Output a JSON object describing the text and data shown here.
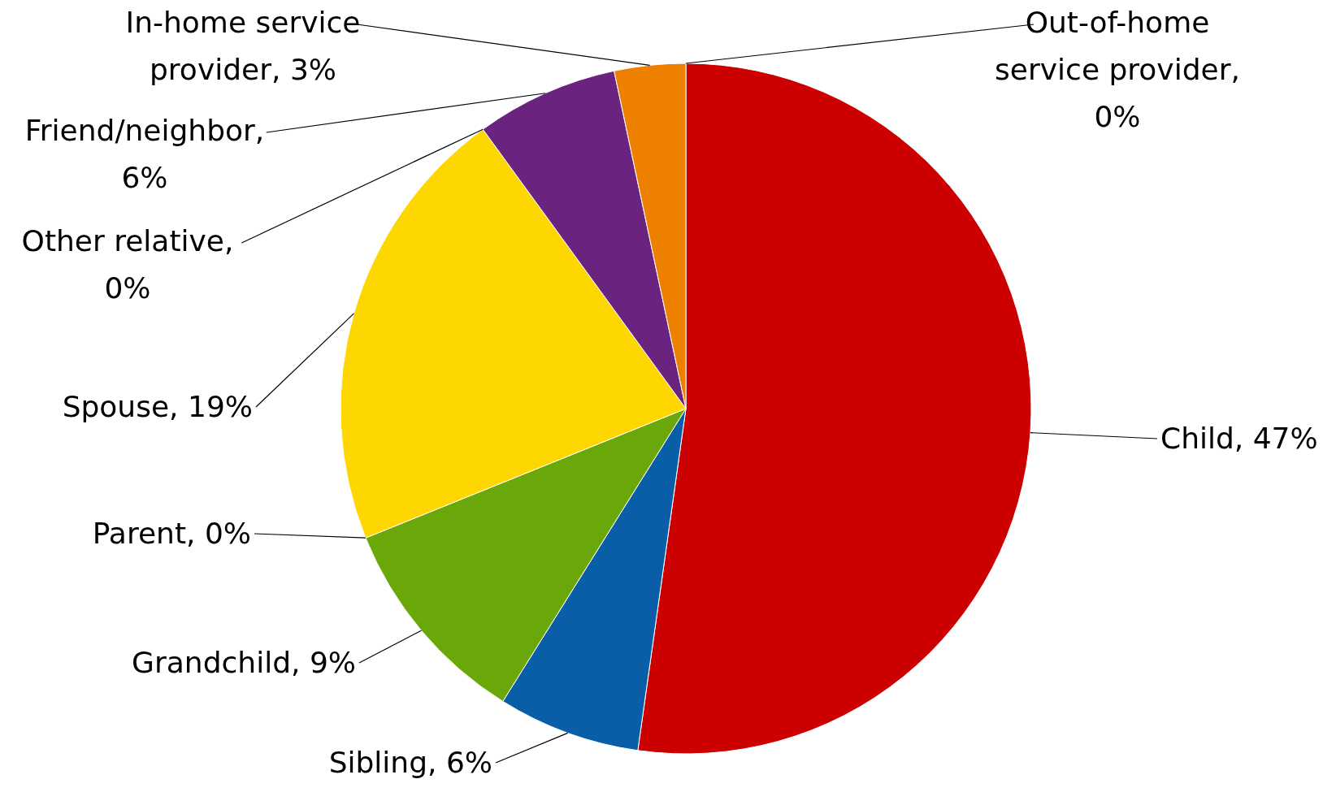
{
  "chart_data": {
    "type": "pie",
    "categories": [
      "Child, 47%",
      "Sibling, 6%",
      "Grandchild, 9%",
      "Parent, 0%",
      "Spouse, 19%",
      "Other relative, 0%",
      "Friend/neighbor, 6%",
      "In-home service provider, 3%",
      "Out-of-home service provider, 0%"
    ],
    "values": [
      47,
      6,
      9,
      0,
      19,
      0,
      6,
      3,
      0
    ],
    "colors": [
      "#cc0000",
      "#0a5ea8",
      "#6aa80a",
      "#4f81bd",
      "#ffd700",
      "#9bbb59",
      "#6a2480",
      "#ee8000",
      "#4bacc6"
    ]
  }
}
